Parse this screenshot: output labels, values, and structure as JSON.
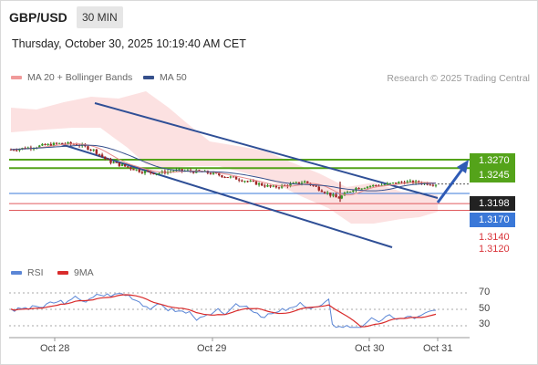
{
  "header": {
    "pair": "GBP/USD",
    "timeframe": "30 MIN",
    "datetime": "Thursday, October 30, 2025 10:19:40 AM CET"
  },
  "legend": {
    "ma20": "MA 20 + Bollinger Bands",
    "ma50": "MA 50",
    "credit": "Research © 2025 Trading Central"
  },
  "rsi_legend": {
    "rsi": "RSI",
    "ma": "9MA"
  },
  "levels": {
    "r2": "1.3270",
    "r1": "1.3245",
    "current": "1.3198",
    "s1": "1.3170",
    "s2": "1.3140",
    "s3": "1.3120"
  },
  "x_axis": [
    "Oct 28",
    "Oct 29",
    "Oct 30",
    "Oct 31"
  ],
  "rsi_axis": [
    "70",
    "50",
    "30"
  ],
  "colors": {
    "green": "#54a31a",
    "blue_line": "#3a78d8",
    "channel": "#2f4f96",
    "red": "#e05a5e",
    "ma20": "#e88b8b",
    "ma50": "#36508c",
    "band_fill": "#fbdcdc"
  },
  "chart_data": {
    "type": "candlestick",
    "price_levels": [
      1.327,
      1.3245,
      1.3198,
      1.317,
      1.314,
      1.312
    ],
    "current_price": 1.3198,
    "x_labels": [
      "Oct 28",
      "Oct 29",
      "Oct 30",
      "Oct 31"
    ],
    "close_path": [
      1.33,
      1.3305,
      1.3312,
      1.3318,
      1.3316,
      1.33,
      1.3265,
      1.325,
      1.3235,
      1.323,
      1.3238,
      1.3236,
      1.3232,
      1.3222,
      1.3212,
      1.32,
      1.3188,
      1.3195,
      1.3205,
      1.318,
      1.3155,
      1.3185,
      1.3192,
      1.3197,
      1.3204,
      1.3202,
      1.3198
    ],
    "rsi": {
      "levels": [
        70,
        50,
        30
      ]
    },
    "annotations": [
      "descending channel",
      "forecast arrow toward 1.3270"
    ]
  }
}
